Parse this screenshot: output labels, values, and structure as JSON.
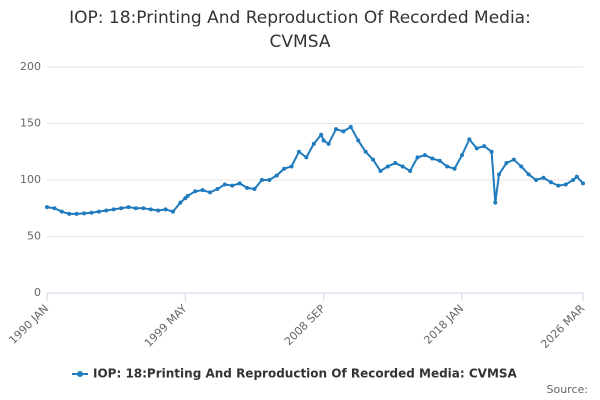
{
  "chart_data": {
    "type": "line",
    "title": "IOP: 18:Printing And Reproduction Of Recorded Media:",
    "subtitle": "CVMSA",
    "source": "Source:",
    "x": [
      "1990-01",
      "1990-07",
      "1991-01",
      "1991-07",
      "1992-01",
      "1992-07",
      "1993-01",
      "1993-07",
      "1994-01",
      "1994-07",
      "1995-01",
      "1995-07",
      "1996-01",
      "1996-07",
      "1997-01",
      "1997-07",
      "1998-01",
      "1998-07",
      "1999-01",
      "1999-05",
      "1999-07",
      "2000-01",
      "2000-07",
      "2001-01",
      "2001-07",
      "2002-01",
      "2002-07",
      "2003-01",
      "2003-07",
      "2004-01",
      "2004-07",
      "2005-01",
      "2005-07",
      "2006-01",
      "2006-07",
      "2007-01",
      "2007-07",
      "2008-01",
      "2008-07",
      "2008-09",
      "2009-01",
      "2009-07",
      "2010-01",
      "2010-07",
      "2011-01",
      "2011-07",
      "2012-01",
      "2012-07",
      "2013-01",
      "2013-07",
      "2014-01",
      "2014-07",
      "2015-01",
      "2015-07",
      "2016-01",
      "2016-07",
      "2017-01",
      "2017-07",
      "2018-01",
      "2018-07",
      "2019-01",
      "2019-07",
      "2020-01",
      "2020-04",
      "2020-07",
      "2021-01",
      "2021-07",
      "2022-01",
      "2022-07",
      "2023-01",
      "2023-07",
      "2024-01",
      "2024-07",
      "2025-01",
      "2025-07",
      "2025-10",
      "2026-03"
    ],
    "series": [
      {
        "name": "IOP: 18:Printing And Reproduction Of Recorded Media: CVMSA",
        "color": "#1f7bbd",
        "values": [
          76,
          75,
          72,
          70,
          70,
          70.5,
          71,
          72,
          73,
          74,
          75,
          76,
          75,
          75,
          74,
          73,
          74,
          72,
          80,
          84,
          86,
          90,
          91,
          89,
          92,
          96,
          95,
          97,
          93,
          92,
          100,
          100,
          104,
          110,
          112,
          125,
          120,
          132,
          140,
          135,
          132,
          145,
          143,
          147,
          135,
          125,
          118,
          108,
          112,
          115,
          112,
          108,
          120,
          122,
          119,
          117,
          112,
          110,
          122,
          136,
          128,
          130,
          125,
          80,
          105,
          115,
          118,
          112,
          105,
          100,
          102,
          98,
          95,
          96,
          100,
          103,
          97
        ]
      }
    ],
    "xlim": [
      "1990-01",
      "2026-03"
    ],
    "xticks": [
      {
        "value": "1990-01",
        "label": "1990 JAN"
      },
      {
        "value": "1999-05",
        "label": "1999 MAY"
      },
      {
        "value": "2008-09",
        "label": "2008 SEP"
      },
      {
        "value": "2018-01",
        "label": "2018 JAN"
      },
      {
        "value": "2026-03",
        "label": "2026 MAR"
      }
    ],
    "ylim": [
      0,
      200
    ],
    "yticks": [
      0,
      50,
      100,
      150,
      200
    ],
    "grid": true
  }
}
